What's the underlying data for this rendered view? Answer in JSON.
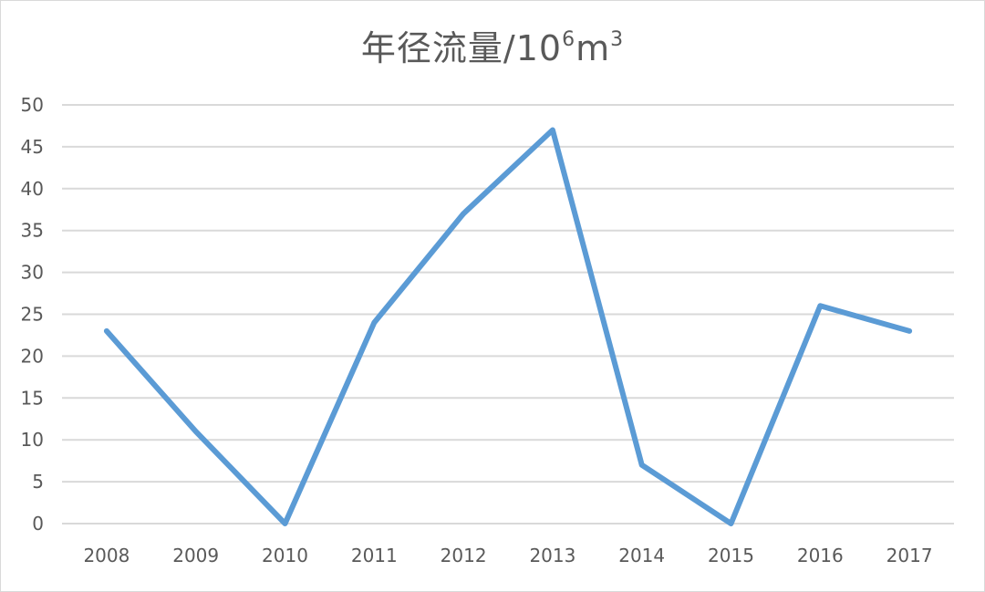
{
  "chart_data": {
    "type": "line",
    "title": {
      "main": "年径流量/10",
      "sup1": "6",
      "mid": "m",
      "sup2": "3"
    },
    "xlabel": "",
    "ylabel": "",
    "categories": [
      "2008",
      "2009",
      "2010",
      "2011",
      "2012",
      "2013",
      "2014",
      "2015",
      "2016",
      "2017"
    ],
    "series": [
      {
        "values": [
          23,
          11,
          0,
          24,
          37,
          47,
          7,
          0,
          26,
          23
        ],
        "color": "#5b9bd5"
      }
    ],
    "ylim": [
      0,
      50
    ],
    "yticks": [
      "0",
      "5",
      "10",
      "15",
      "20",
      "25",
      "30",
      "35",
      "40",
      "45",
      "50"
    ],
    "grid": true,
    "gridColor": "#d9d9d9",
    "legend": "none"
  }
}
